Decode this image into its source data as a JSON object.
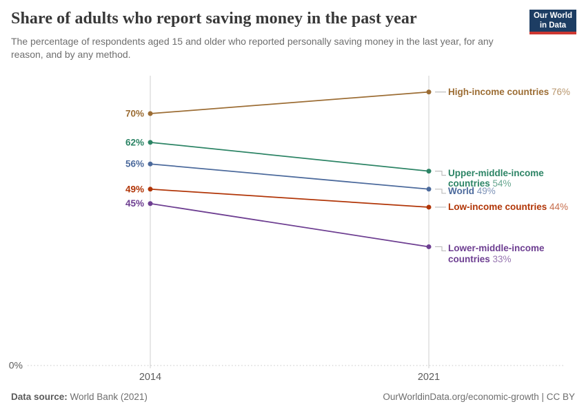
{
  "header": {
    "title": "Share of adults who report saving money in the past year",
    "subtitle": "The percentage of respondents aged 15 and older who reported personally saving money in the last year, for any reason, and by any method.",
    "logo_line1": "Our World",
    "logo_line2": "in Data"
  },
  "chart_data": {
    "type": "line",
    "subtype": "slope",
    "title": "Share of adults who report saving money in the past year",
    "x": [
      "2014",
      "2021"
    ],
    "unit": "%",
    "ylim": [
      0,
      80
    ],
    "grid": "zero-line-only",
    "yticks": [
      {
        "value": 0,
        "label": "0%"
      }
    ],
    "legend_position": "right-of-lines",
    "series": [
      {
        "name": "High-income countries",
        "label_lines": [
          "High-income countries"
        ],
        "values": [
          70,
          76
        ],
        "start_label": "70%",
        "end_label": "76%",
        "color": "#9c6d34"
      },
      {
        "name": "Upper-middle-income countries",
        "label_lines": [
          "Upper-middle-income",
          "countries"
        ],
        "values": [
          62,
          54
        ],
        "start_label": "62%",
        "end_label": "54%",
        "color": "#2c8465"
      },
      {
        "name": "World",
        "label_lines": [
          "World"
        ],
        "values": [
          56,
          49
        ],
        "start_label": "56%",
        "end_label": "49%",
        "color": "#4c6a9c"
      },
      {
        "name": "Low-income countries",
        "label_lines": [
          "Low-income countries"
        ],
        "values": [
          49,
          44
        ],
        "start_label": "49%",
        "end_label": "44%",
        "color": "#b13507"
      },
      {
        "name": "Lower-middle-income countries",
        "label_lines": [
          "Lower-middle-income",
          "countries"
        ],
        "values": [
          45,
          33
        ],
        "start_label": "45%",
        "end_label": "33%",
        "color": "#6d3e91"
      }
    ],
    "axis_color_hex": "#cfcfcf",
    "zero_line_color_hex": "#d9d9d9",
    "tick_label_color_hex": "#5b5b5b"
  },
  "footer": {
    "source_label": "Data source:",
    "source_value": "World Bank (2021)",
    "credit": "OurWorldinData.org/economic-growth | CC BY"
  }
}
